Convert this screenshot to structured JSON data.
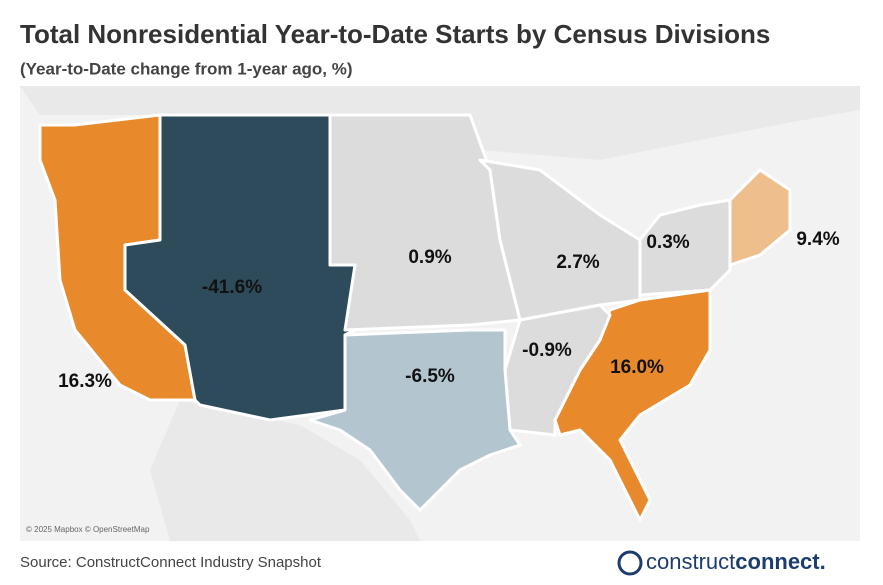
{
  "header": {
    "title": "Total Nonresidential Year-to-Date Starts by Census Divisions",
    "subtitle": "(Year-to-Date change from 1-year ago, %)"
  },
  "map": {
    "type": "choropleth",
    "divisions": [
      {
        "value": 16.3,
        "label": "16.3%",
        "color": "#e8892b"
      },
      {
        "value": -41.6,
        "label": "-41.6%",
        "color": "#2e4b5c"
      },
      {
        "value": 0.9,
        "label": "0.9%",
        "color": "#dcdcdc"
      },
      {
        "value": 2.7,
        "label": "2.7%",
        "color": "#dcdcdc"
      },
      {
        "value": 0.3,
        "label": "0.3%",
        "color": "#dcdcdc"
      },
      {
        "value": 9.4,
        "label": "9.4%",
        "color": "#eebf8d"
      },
      {
        "value": 16.0,
        "label": "16.0%",
        "color": "#e8892b"
      },
      {
        "value": -0.9,
        "label": "-0.9%",
        "color": "#dcdcdc"
      },
      {
        "value": -6.5,
        "label": "-6.5%",
        "color": "#b3c5cf"
      }
    ],
    "attribution": "© 2025 Mapbox © OpenStreetMap"
  },
  "footer": {
    "source": "Source: ConstructConnect Industry Snapshot",
    "logo": [
      "construct",
      "connect."
    ]
  }
}
